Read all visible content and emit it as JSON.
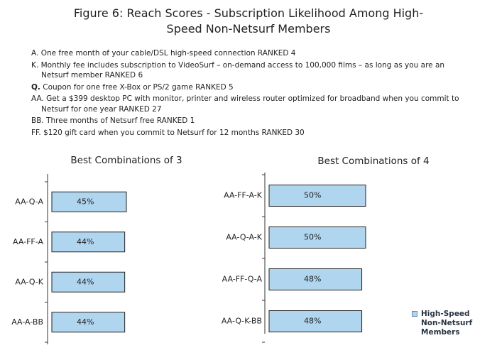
{
  "title": "Figure 6: Reach Scores - Subscription Likelihood Among High-Speed Non-Netsurf Members",
  "notes": [
    {
      "key": "A.",
      "text": "One free month of your cable/DSL high-speed connection  RANKED 4"
    },
    {
      "key": "K.",
      "text": "Monthly fee includes subscription to VideoSurf – on-demand access to 100,000 films – as long as you are an Netsurf member  RANKED 6"
    },
    {
      "key": "Q.",
      "text": "Coupon for one free X-Box or PS/2 game  RANKED 5"
    },
    {
      "key": "AA.",
      "text": "Get a $399 desktop PC with monitor, printer and wireless router optimized for broadband when you commit to Netsurf for one year  RANKED 27"
    },
    {
      "key": "BB.",
      "text": "Three months of Netsurf free  RANKED 1"
    },
    {
      "key": "FF.",
      "text": "$120 gift card when you commit to Netsurf for 12 months  RANKED 30"
    }
  ],
  "chart_data": [
    {
      "type": "bar",
      "orientation": "horizontal",
      "title": "Best Combinations of 3",
      "categories": [
        "AA-Q-A",
        "AA-FF-A",
        "AA-Q-K",
        "AA-A-BB"
      ],
      "color": "#afd5ef",
      "values": [
        45,
        44,
        44,
        44
      ],
      "value_labels": [
        "45%",
        "44%",
        "44%",
        "44%"
      ]
    },
    {
      "type": "bar",
      "orientation": "horizontal",
      "title": "Best Combinations of 4",
      "categories": [
        "AA-FF-A-K",
        "AA-Q-A-K",
        "AA-FF-Q-A",
        "AA-Q-K-BB"
      ],
      "legend": "lower right",
      "series": [
        {
          "name": "High-Speed Non-Netsurf Members",
          "color": "#afd5ef",
          "values": [
            50,
            50,
            48,
            48
          ],
          "value_labels": [
            "50%",
            "50%",
            "48%",
            "48%"
          ]
        }
      ]
    }
  ]
}
